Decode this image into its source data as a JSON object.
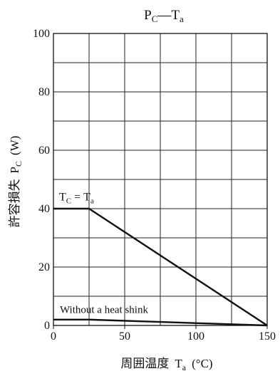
{
  "chart_data": {
    "type": "line",
    "title": {
      "main": "P",
      "main_sub": "C",
      "dash": "—",
      "second": "T",
      "second_sub": "a"
    },
    "xlabel": {
      "prefix": "周囲温度",
      "var": "T",
      "var_sub": "a",
      "unit": "(°C)"
    },
    "ylabel": {
      "prefix": "許容損失",
      "var": "P",
      "var_sub": "C",
      "unit": "(W)"
    },
    "xlim": [
      0,
      150
    ],
    "ylim": [
      0,
      100
    ],
    "x_ticks": [
      "0",
      "50",
      "100",
      "150"
    ],
    "y_ticks": [
      "0",
      "20",
      "40",
      "60",
      "80",
      "100"
    ],
    "x_grid": [
      0,
      25,
      50,
      75,
      100,
      125,
      150
    ],
    "y_grid": [
      0,
      10,
      20,
      30,
      40,
      50,
      60,
      70,
      80,
      90,
      100
    ],
    "grid": true,
    "series": [
      {
        "name": "TC = Ta",
        "x": [
          0,
          25,
          150
        ],
        "y": [
          40,
          40,
          0
        ]
      },
      {
        "name": "Without a heat shink",
        "x": [
          0,
          25,
          150
        ],
        "y": [
          2,
          2,
          0
        ]
      }
    ],
    "annotations": {
      "tc_label": {
        "var1": "T",
        "sub1": "C",
        "eq": "=",
        "var2": "T",
        "sub2": "a"
      },
      "no_sink_label": "Without a heat shink"
    }
  }
}
